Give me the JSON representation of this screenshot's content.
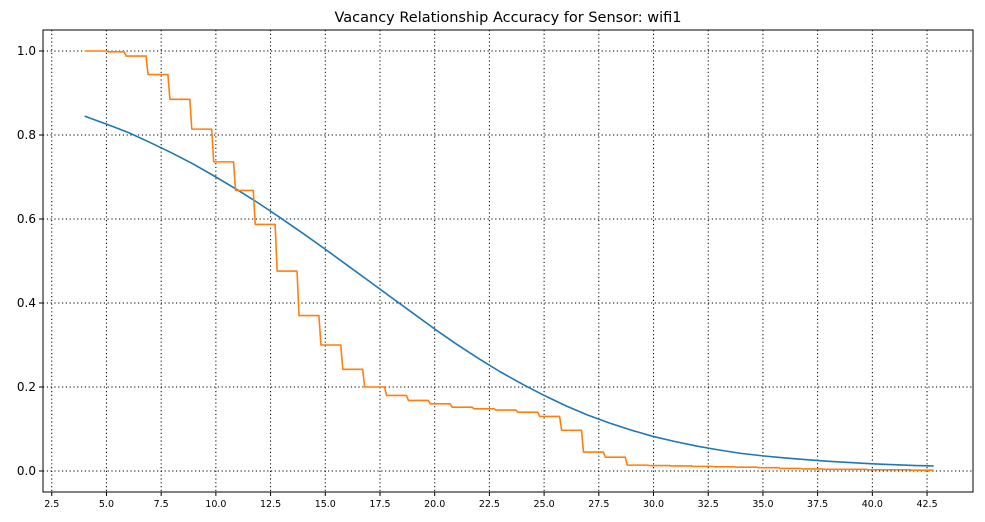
{
  "chart_data": {
    "type": "line",
    "title": "Vacancy Relationship Accuracy for Sensor: wifi1",
    "xlabel": "",
    "ylabel": "",
    "xlim": [
      2.1,
      44.6
    ],
    "ylim": [
      -0.05,
      1.05
    ],
    "grid": true,
    "x_ticks": [
      "2.5",
      "5.0",
      "7.5",
      "10.0",
      "12.5",
      "15.0",
      "17.5",
      "20.0",
      "22.5",
      "25.0",
      "27.5",
      "30.0",
      "32.5",
      "35.0",
      "37.5",
      "40.0",
      "42.5"
    ],
    "y_ticks": [
      "0.0",
      "0.2",
      "0.4",
      "0.6",
      "0.8",
      "1.0"
    ],
    "series": [
      {
        "color": "#1f77b4",
        "style": "smooth",
        "x": [
          4.0,
          5.0,
          6.0,
          7.0,
          8.0,
          9.0,
          10.0,
          11.0,
          12.0,
          13.0,
          14.0,
          15.0,
          16.0,
          17.0,
          18.0,
          19.0,
          20.0,
          21.0,
          22.0,
          23.0,
          24.0,
          25.0,
          26.0,
          27.0,
          28.0,
          29.0,
          30.0,
          31.0,
          32.0,
          33.0,
          34.0,
          35.0,
          36.0,
          37.0,
          38.0,
          39.0,
          40.0,
          41.0,
          42.0,
          42.8
        ],
        "values": [
          0.845,
          0.826,
          0.806,
          0.782,
          0.757,
          0.73,
          0.7,
          0.669,
          0.636,
          0.601,
          0.565,
          0.528,
          0.49,
          0.452,
          0.414,
          0.376,
          0.338,
          0.302,
          0.268,
          0.236,
          0.207,
          0.18,
          0.155,
          0.133,
          0.114,
          0.097,
          0.082,
          0.07,
          0.059,
          0.05,
          0.042,
          0.036,
          0.031,
          0.027,
          0.023,
          0.02,
          0.017,
          0.015,
          0.013,
          0.012
        ]
      },
      {
        "color": "#ff7f0e",
        "style": "step",
        "x": [
          4.0,
          5.1,
          5.9,
          6.9,
          7.9,
          8.9,
          9.9,
          10.9,
          11.8,
          12.8,
          13.8,
          14.8,
          15.8,
          16.8,
          17.8,
          18.8,
          19.8,
          20.8,
          21.8,
          22.8,
          23.8,
          24.8,
          25.8,
          26.8,
          27.8,
          28.8,
          29.8,
          30.8,
          31.8,
          32.8,
          33.8,
          34.8,
          35.8,
          36.8,
          37.8,
          38.8,
          39.8,
          40.8,
          41.8,
          42.8
        ],
        "values": [
          1.0,
          0.998,
          0.988,
          0.944,
          0.885,
          0.814,
          0.736,
          0.668,
          0.587,
          0.476,
          0.37,
          0.3,
          0.242,
          0.2,
          0.18,
          0.168,
          0.16,
          0.152,
          0.148,
          0.145,
          0.14,
          0.13,
          0.097,
          0.045,
          0.033,
          0.014,
          0.013,
          0.012,
          0.011,
          0.01,
          0.009,
          0.008,
          0.006,
          0.005,
          0.004,
          0.004,
          0.003,
          0.003,
          0.002,
          0.002
        ]
      }
    ]
  }
}
